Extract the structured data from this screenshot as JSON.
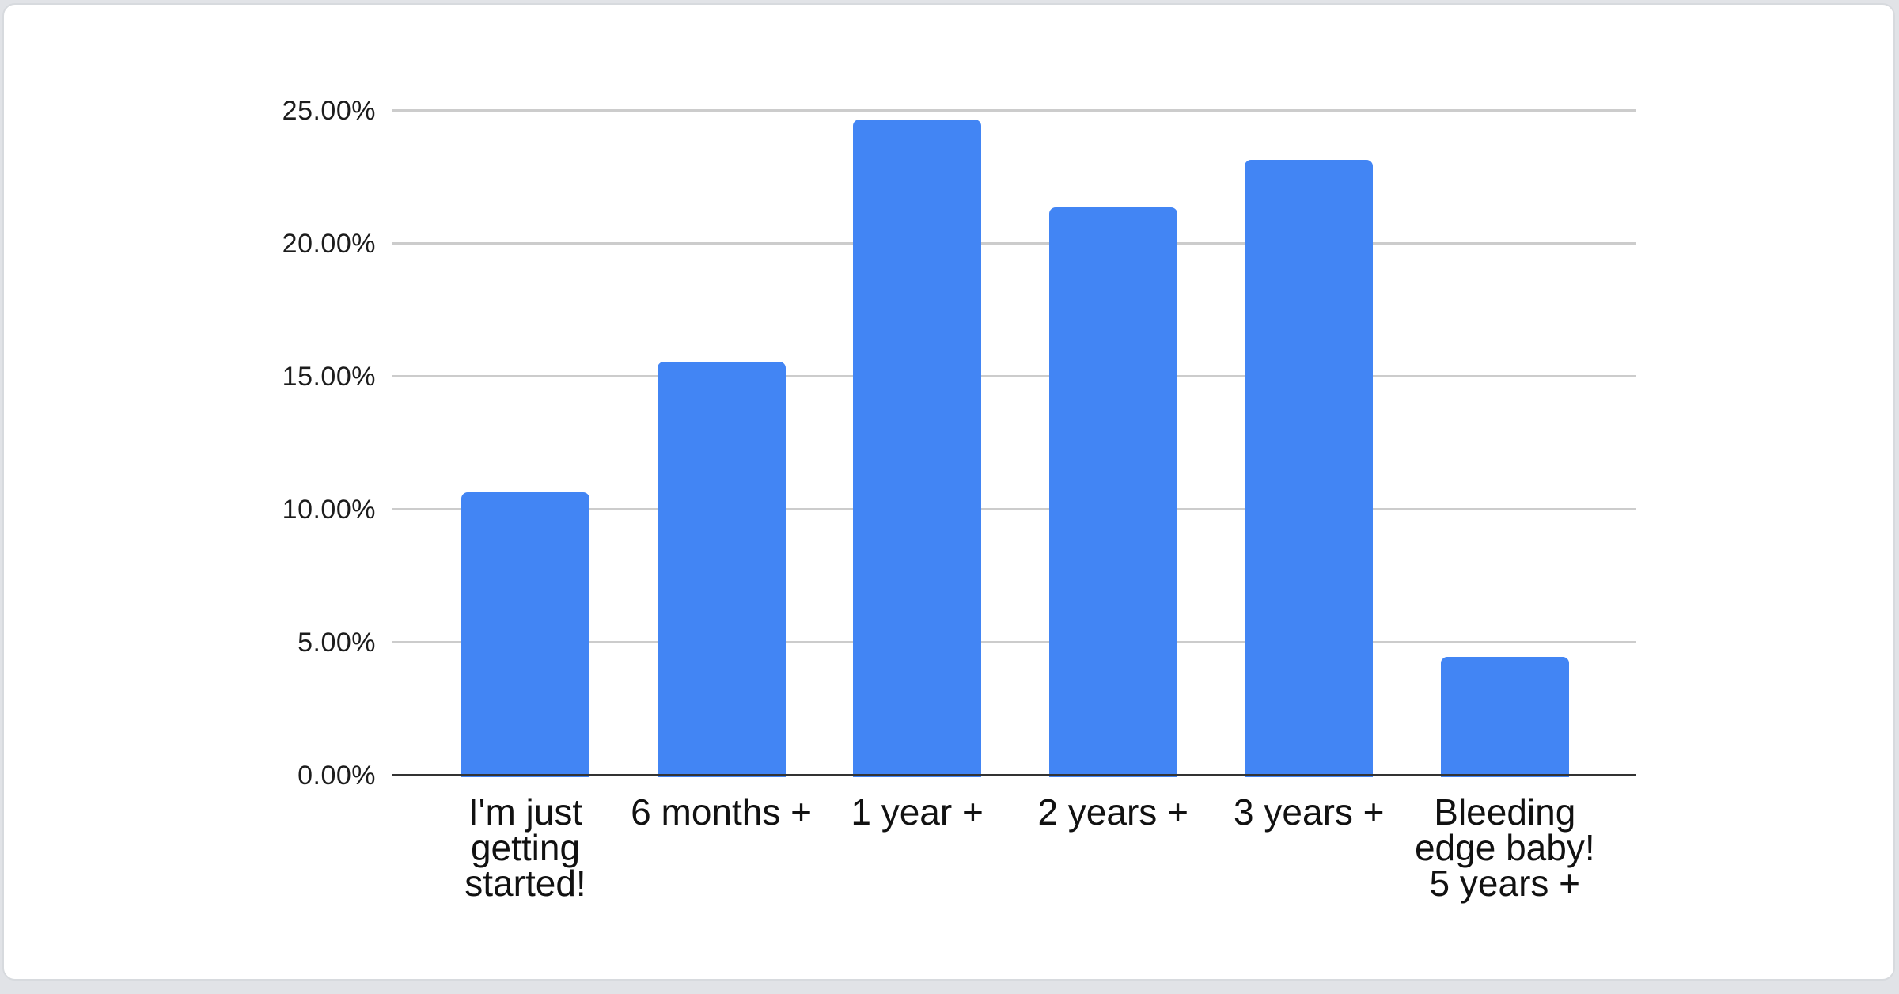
{
  "chart_data": {
    "type": "bar",
    "title": "",
    "xlabel": "",
    "ylabel": "",
    "legend": "none",
    "grid": true,
    "ylim": [
      0,
      25
    ],
    "ytick_interval": 5,
    "categories": [
      "I'm just getting started!",
      "6 months +",
      "1 year +",
      "2 years +",
      "3 years +",
      "Bleeding edge baby! 5 years +"
    ],
    "category_display": [
      "I'm just\ngetting\nstarted!",
      "6 months +",
      "1 year +",
      "2 years +",
      "3 years +",
      "Bleeding\nedge baby!\n5 years +"
    ],
    "values": [
      10.65,
      15.55,
      24.65,
      21.35,
      23.15,
      4.45
    ],
    "value_unit": "percent",
    "yticks": [
      {
        "pct": 25,
        "label": "25.00%"
      },
      {
        "pct": 20,
        "label": "20.00%"
      },
      {
        "pct": 15,
        "label": "15.00%"
      },
      {
        "pct": 10,
        "label": "10.00%"
      },
      {
        "pct": 5,
        "label": "5.00%"
      },
      {
        "pct": 0,
        "label": "0.00%"
      }
    ],
    "bar_color": "#4285F4"
  },
  "style": {
    "page_background": "#e1e3e7",
    "card_background": "#ffffff",
    "card_border": "#d7dade",
    "gridline_color": "#cccccc",
    "axis_line_color": "#333333",
    "tick_text_color": "#1c1c1c",
    "label_text_color": "#111111"
  }
}
